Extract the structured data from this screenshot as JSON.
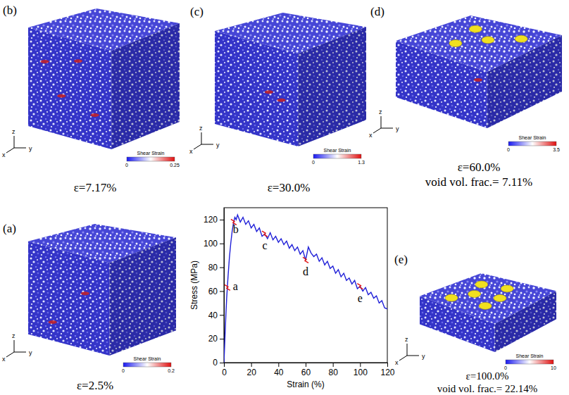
{
  "chart_data": {
    "type": "line",
    "xlabel": "Strain (%)",
    "ylabel": "Stress (MPa)",
    "x": [
      0,
      0.5,
      1,
      1.5,
      2,
      2.5,
      3,
      4,
      5,
      6,
      7,
      8,
      9,
      10,
      12,
      14,
      16,
      18,
      20,
      22,
      24,
      26,
      28,
      30,
      32,
      34,
      36,
      38,
      40,
      42,
      44,
      46,
      48,
      50,
      52,
      54,
      56,
      58,
      60,
      62,
      64,
      66,
      68,
      70,
      72,
      74,
      76,
      78,
      80,
      82,
      84,
      86,
      88,
      90,
      92,
      94,
      96,
      98,
      100,
      102,
      104,
      106,
      108,
      110,
      112,
      114,
      116,
      118,
      120
    ],
    "values": [
      0,
      14,
      28,
      42,
      54,
      63,
      72,
      88,
      100,
      110,
      117,
      122,
      120,
      124,
      118,
      122,
      116,
      119,
      113,
      116,
      110,
      113,
      106,
      108,
      104,
      109,
      103,
      106,
      101,
      104,
      99,
      102,
      96,
      99,
      94,
      97,
      91,
      94,
      86,
      97,
      92,
      89,
      91,
      85,
      88,
      82,
      85,
      79,
      81,
      75,
      78,
      72,
      75,
      69,
      71,
      66,
      69,
      62,
      64,
      60,
      63,
      57,
      59,
      54,
      56,
      50,
      52,
      46,
      45
    ],
    "color": "#2020d8",
    "xlim": [
      0,
      120
    ],
    "ylim": [
      0,
      130
    ],
    "xticks": [
      0,
      20,
      40,
      60,
      80,
      100,
      120
    ],
    "yticks": [
      0,
      20,
      40,
      60,
      80,
      100,
      120
    ],
    "grid": false,
    "annotations": [
      {
        "text": "a",
        "x": 2.5,
        "y": 63
      },
      {
        "text": "b",
        "x": 7.17,
        "y": 118
      },
      {
        "text": "c",
        "x": 30,
        "y": 108
      },
      {
        "text": "d",
        "x": 60,
        "y": 86
      },
      {
        "text": "e",
        "x": 100,
        "y": 64
      }
    ]
  },
  "panels": [
    {
      "label": "(a)",
      "strain": "ε=2.5%",
      "colorbar": {
        "title": "Shear Strain",
        "range": [
          0,
          0.2
        ],
        "ticks": [
          0,
          0.2
        ]
      },
      "axes": [
        "x",
        "y",
        "z"
      ]
    },
    {
      "label": "(b)",
      "strain": "ε=7.17%",
      "colorbar": {
        "title": "Shear Strain",
        "range": [
          0,
          0.25
        ],
        "ticks": [
          0,
          0.25
        ]
      },
      "axes": [
        "x",
        "y",
        "z"
      ]
    },
    {
      "label": "(c)",
      "strain": "ε=30.0%",
      "colorbar": {
        "title": "Shear Strain",
        "range": [
          0,
          1.3
        ],
        "ticks": [
          0,
          1.3
        ]
      },
      "axes": [
        "x",
        "y",
        "z"
      ]
    },
    {
      "label": "(d)",
      "strain": "ε=60.0%",
      "void": "void vol. frac.= 7.11%",
      "colorbar": {
        "title": "Shear Strain",
        "range": [
          0,
          3.5
        ],
        "ticks": [
          0,
          3.5
        ]
      },
      "axes": [
        "x",
        "y",
        "z"
      ]
    },
    {
      "label": "(e)",
      "strain": "ε=100.0%",
      "void": "void vol. frac.= 22.14%",
      "colorbar": {
        "title": "Shear Strain",
        "range": [
          0,
          10
        ],
        "ticks": [
          0,
          10
        ]
      },
      "axes": [
        "x",
        "y",
        "z"
      ]
    }
  ]
}
